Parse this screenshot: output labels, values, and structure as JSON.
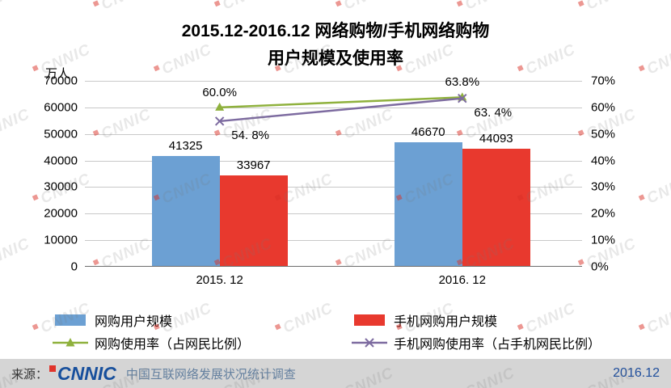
{
  "title": {
    "line1": "2015.12-2016.12 网络购物/手机网络购物",
    "line2": "用户规模及使用率"
  },
  "chart_data": {
    "type": "bar",
    "subtype": "combo-bar-line-dual-axis",
    "title": "2015.12-2016.12 网络购物/手机网络购物用户规模及使用率",
    "categories": [
      "2015. 12",
      "2016. 12"
    ],
    "left_axis": {
      "unit": "万人",
      "min": 0,
      "max": 70000,
      "step": 10000,
      "ticks": [
        "0",
        "10000",
        "20000",
        "30000",
        "40000",
        "50000",
        "60000",
        "70000"
      ]
    },
    "right_axis": {
      "min": 0,
      "max": 70,
      "step": 10,
      "ticks": [
        "0%",
        "10%",
        "20%",
        "30%",
        "40%",
        "50%",
        "60%",
        "70%"
      ]
    },
    "bar_series": [
      {
        "name": "网购用户规模",
        "color": "#6ca0d3",
        "values": [
          41325,
          46670
        ],
        "labels": [
          "41325",
          "46670"
        ]
      },
      {
        "name": "手机网购用户规模",
        "color": "#e8392e",
        "values": [
          33967,
          44093
        ],
        "labels": [
          "33967",
          "44093"
        ]
      }
    ],
    "line_series": [
      {
        "name": "网购使用率（占网民比例）",
        "color": "#8fb13d",
        "marker": "triangle",
        "values": [
          60.0,
          63.8
        ],
        "labels": [
          "60.0%",
          "63.8%"
        ],
        "label_position": "above"
      },
      {
        "name": "手机网购使用率（占手机网民比例）",
        "color": "#7d6ba0",
        "marker": "x",
        "values": [
          54.8,
          63.4
        ],
        "labels": [
          "54. 8%",
          "63. 4%"
        ],
        "label_position": "below"
      }
    ],
    "grid": true,
    "legend_position": "bottom"
  },
  "footer": {
    "source_label": "来源：",
    "logo_text": "CNNIC",
    "source_text": "中国互联网络发展状况统计调查",
    "date": "2016.12"
  },
  "watermark": {
    "text": "CNNIC",
    "logo_color": "#d93025"
  }
}
